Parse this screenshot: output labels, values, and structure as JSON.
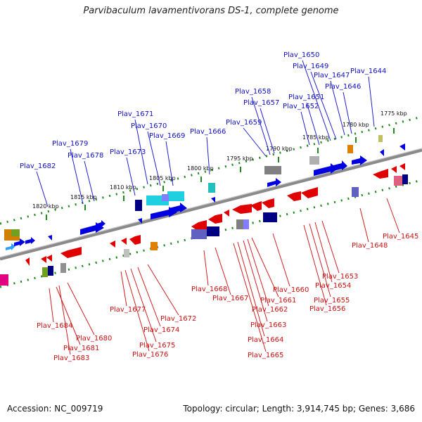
{
  "title": "Parvibaculum lavamentivorans DS-1, complete genome",
  "accession": "Accession: NC_009719",
  "topology": "Topology: circular; Length: 3,914,745 bp; Genes: 3,686",
  "colors": {
    "forward_label": "#1010c8",
    "reverse_label": "#d01010",
    "backbone": "#888888",
    "tick": "#1f8a1f",
    "forward_gene": "#0000e0",
    "reverse_gene": "#e00000"
  },
  "kbp_ticks": [
    {
      "label": "1820 kbp",
      "pos": 0
    },
    {
      "label": "1815 kbp",
      "pos": 1
    },
    {
      "label": "1810 kbp",
      "pos": 2
    },
    {
      "label": "1805 kbp",
      "pos": 3
    },
    {
      "label": "1800 kbp",
      "pos": 4
    },
    {
      "label": "1795 kbp",
      "pos": 5
    },
    {
      "label": "1790 kbp",
      "pos": 6
    },
    {
      "label": "1785 kbp",
      "pos": 7
    },
    {
      "label": "1780 kbp",
      "pos": 8
    },
    {
      "label": "1775 kbp",
      "pos": 9
    }
  ],
  "forward_labels": [
    "Plav_1682",
    "Plav_1679",
    "Plav_1678",
    "Plav_1673",
    "Plav_1671",
    "Plav_1670",
    "Plav_1669",
    "Plav_1666",
    "Plav_1659",
    "Plav_1658",
    "Plav_1657",
    "Plav_1652",
    "Plav_1651",
    "Plav_1650",
    "Plav_1649",
    "Plav_1647",
    "Plav_1646",
    "Plav_1644"
  ],
  "reverse_labels": [
    "Plav_1684",
    "Plav_1681",
    "Plav_1683",
    "Plav_1680",
    "Plav_1677",
    "Plav_1675",
    "Plav_1676",
    "Plav_1674",
    "Plav_1672",
    "Plav_1668",
    "Plav_1667",
    "Plav_1665",
    "Plav_1664",
    "Plav_1663",
    "Plav_1662",
    "Plav_1661",
    "Plav_1660",
    "Plav_1656",
    "Plav_1655",
    "Plav_1654",
    "Plav_1653",
    "Plav_1648",
    "Plav_1645"
  ]
}
